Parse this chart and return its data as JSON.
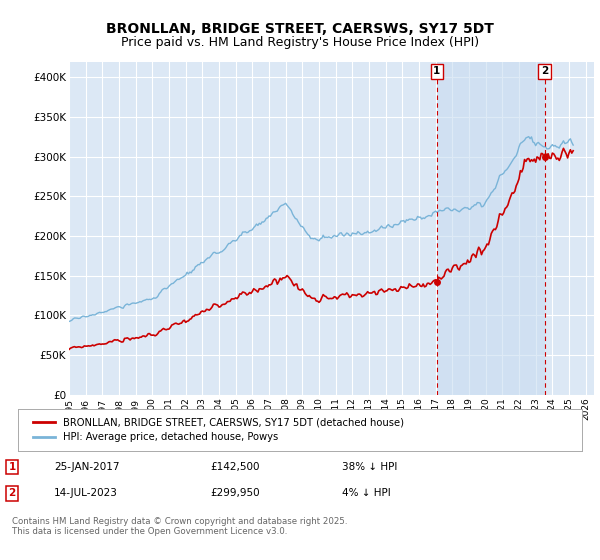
{
  "title": "BRONLLAN, BRIDGE STREET, CAERSWS, SY17 5DT",
  "subtitle": "Price paid vs. HM Land Registry's House Price Index (HPI)",
  "ylim": [
    0,
    420000
  ],
  "yticks": [
    0,
    50000,
    100000,
    150000,
    200000,
    250000,
    300000,
    350000,
    400000
  ],
  "ytick_labels": [
    "£0",
    "£50K",
    "£100K",
    "£150K",
    "£200K",
    "£250K",
    "£300K",
    "£350K",
    "£400K"
  ],
  "xlim_start": 1995.0,
  "xlim_end": 2026.5,
  "hpi_color": "#7ab4d8",
  "price_color": "#cc0000",
  "dashed_color": "#cc0000",
  "shade_color": "#ddeeff",
  "background_color": "#dce8f5",
  "grid_color": "#ffffff",
  "title_fontsize": 10,
  "subtitle_fontsize": 9,
  "legend_label_property": "BRONLLAN, BRIDGE STREET, CAERSWS, SY17 5DT (detached house)",
  "legend_label_hpi": "HPI: Average price, detached house, Powys",
  "sale1_date": "25-JAN-2017",
  "sale1_price": "£142,500",
  "sale1_hpi": "38% ↓ HPI",
  "sale1_year": 2017.07,
  "sale1_value": 142500,
  "sale2_date": "14-JUL-2023",
  "sale2_price": "£299,950",
  "sale2_hpi": "4% ↓ HPI",
  "sale2_year": 2023.54,
  "sale2_value": 299950,
  "footer": "Contains HM Land Registry data © Crown copyright and database right 2025.\nThis data is licensed under the Open Government Licence v3.0."
}
